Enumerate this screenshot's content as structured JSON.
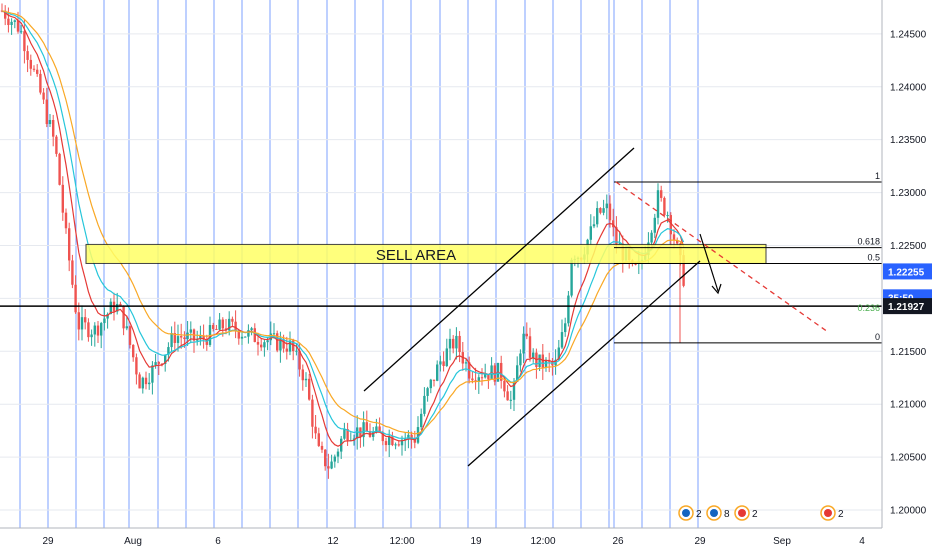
{
  "chart_data": {
    "type": "candlestick",
    "symbol_hint": "",
    "y_ticks": [
      1.245,
      1.24,
      1.235,
      1.23,
      1.225,
      1.22,
      1.215,
      1.21,
      1.205,
      1.2
    ],
    "y_tick_labels": [
      "1.24500",
      "1.24000",
      "1.23500",
      "1.23000",
      "1.22500",
      "1.22000",
      "1.21500",
      "1.21000",
      "1.20500",
      "1.20000"
    ],
    "ylim": [
      1.1983,
      1.2482
    ],
    "x_tick_labels": [
      "29",
      "Aug",
      "6",
      "12",
      "12:00",
      "19",
      "12:00",
      "26",
      "29",
      "Sep",
      "4"
    ],
    "x_tick_positions": [
      0.02,
      0.06,
      0.1,
      0.156,
      0.184,
      0.215,
      0.248,
      0.283,
      0.322,
      0.36,
      0.395
    ],
    "price_labels": [
      {
        "text": "1.22255",
        "value": 1.22255,
        "color": "#2962ff"
      },
      {
        "text": "35:50",
        "value": 1.2201,
        "color": "#2962ff"
      },
      {
        "text": "1.21927",
        "value": 1.21927,
        "color": "#131722"
      }
    ],
    "annotations": {
      "sell_area": {
        "label": "SELL AREA",
        "low": 1.2233,
        "high": 1.2251,
        "fill": "#ffff66",
        "stroke": "#222222"
      },
      "horizontal_line": {
        "value": 1.21927,
        "color": "#000000"
      },
      "fib_levels": [
        {
          "label": "1",
          "value": 1.231
        },
        {
          "label": "0.618",
          "value": 1.2248
        },
        {
          "label": "0.5",
          "value": 1.2233
        },
        {
          "label": "0.236",
          "value": 1.2191,
          "color": "#4caf50"
        },
        {
          "label": "0",
          "value": 1.2158
        }
      ]
    },
    "events": [
      "2",
      "8",
      "2",
      "2"
    ],
    "colors": {
      "up": "#26a69a",
      "down": "#ef5350",
      "ema_fast": "#e53935",
      "ema_mid": "#26c6da",
      "ema_slow": "#f9a825",
      "session": "#2962ff",
      "grid": "#e6e9ef"
    }
  }
}
